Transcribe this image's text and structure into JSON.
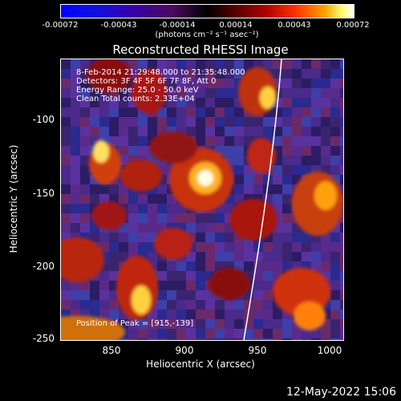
{
  "colorbar": {
    "ticks": [
      "-0.00072",
      "-0.00043",
      "-0.00014",
      "0.00014",
      "0.00043",
      "0.00072"
    ],
    "units": "(photons cm⁻² s⁻¹ asec⁻²)"
  },
  "title": "Reconstructed RHESSI Image",
  "annotations": {
    "time_range": "8-Feb-2014 21:29:48.000 to 21:35:48.000",
    "detectors": "Detectors: 3F 4F 5F 6F 7F 8F, Att 0",
    "energy_range": "Energy Range: 25.0 - 50.0 keV",
    "clean_counts": "Clean     Total counts: 2.33E+04",
    "peak_position": "Position of Peak = [915,-139]"
  },
  "axes": {
    "xlabel": "Heliocentric X (arcsec)",
    "ylabel": "Heliocentric Y (arcsec)",
    "xticks": [
      "850",
      "900",
      "950",
      "1000"
    ],
    "yticks": [
      "-100",
      "-150",
      "-200",
      "-250"
    ],
    "xlim": [
      816,
      1010
    ],
    "ylim": [
      -250,
      -59
    ]
  },
  "footer": {
    "date": "12-May-2022 15:06"
  },
  "colors": {
    "background": "#000000",
    "text": "#ffffff",
    "limb_line": "#ffffff"
  }
}
